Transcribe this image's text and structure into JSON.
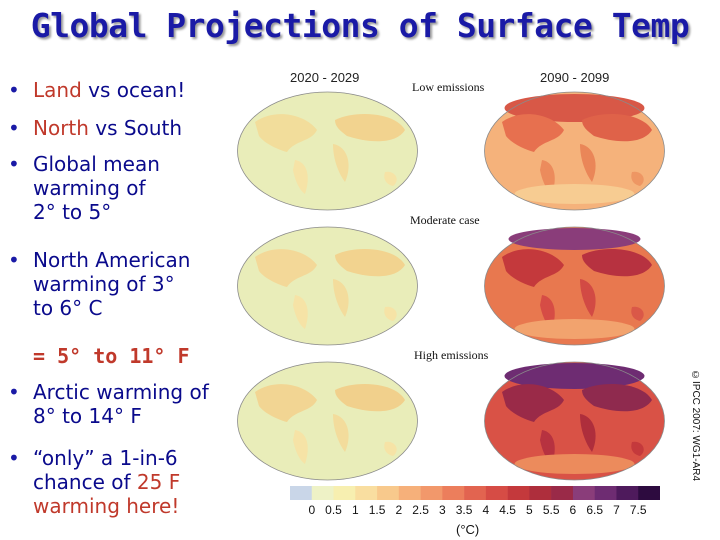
{
  "slide": {
    "title": "Global Projections of Surface Temp",
    "bullets": [
      {
        "pre": "",
        "hl": "Land",
        "post": " vs ocean!"
      },
      {
        "pre": "",
        "hl": "North",
        "post": " vs South"
      },
      {
        "pre": "Global mean warming of 2° to 5°",
        "hl": "",
        "post": ""
      },
      {
        "pre": "North American warming of 3° to 6° C",
        "hl": "",
        "post": ""
      },
      {
        "pre": "Arctic warming of 8° to 14° F",
        "hl": "",
        "post": ""
      },
      {
        "pre": "“only” a 1-in-6 chance of ",
        "hl": "25 F warming here!",
        "post": ""
      }
    ],
    "fahrenheit_line": "= 5° to 11° F"
  },
  "figure": {
    "period_left": "2020 - 2029",
    "period_right": "2090 - 2099",
    "scenarios": [
      "Low emissions",
      "Moderate case",
      "High emissions"
    ],
    "colorbar_ticks": [
      "0",
      "0.5",
      "1",
      "1.5",
      "2",
      "2.5",
      "3",
      "3.5",
      "4",
      "4.5",
      "5",
      "5.5",
      "6",
      "6.5",
      "7",
      "7.5"
    ],
    "colorbar_colors": [
      "#c9d6e8",
      "#eef2c6",
      "#f7efb0",
      "#f9dea0",
      "#f8c98c",
      "#f6b07a",
      "#f2986b",
      "#ec7e5c",
      "#e26450",
      "#d64c45",
      "#c4393c",
      "#ae2e3c",
      "#9a2a48",
      "#8a3d7a",
      "#6e2c72",
      "#4e1a5c",
      "#2d0b3f"
    ],
    "unit": "(°C)",
    "credit": "©IPCC 2007: WG1-AR4"
  }
}
